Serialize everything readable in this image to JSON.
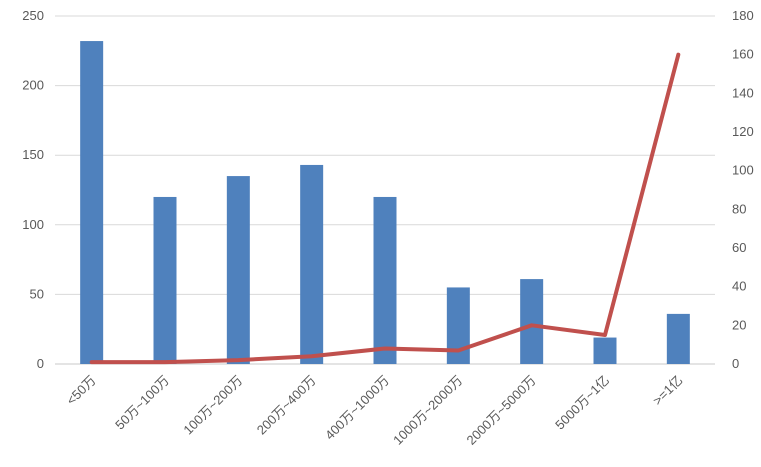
{
  "colors": {
    "bar": "#4f81bd",
    "line": "#c0504d",
    "gridline": "#d9d9d9",
    "axis_line": "#c9c9c9",
    "tick_text": "#595959",
    "background": "#ffffff"
  },
  "chart_data": {
    "type": "bar",
    "subtype": "combo-bar-line-dual-axis",
    "title": "",
    "xlabel": "",
    "ylabel": "",
    "legend": "none",
    "grid": true,
    "x_label_rotation": -45,
    "categories": [
      "<50万",
      "50万~100万",
      "100万~200万",
      "200万~400万",
      "400万~1000万",
      "1000万~2000万",
      "2000万~5000万",
      "5000万~1亿",
      ">=1亿"
    ],
    "series": [
      {
        "id": "bars",
        "type": "bar",
        "axis": "left",
        "color": "#4f81bd",
        "values": [
          232,
          120,
          135,
          143,
          120,
          55,
          61,
          19,
          36
        ]
      },
      {
        "id": "line",
        "type": "line",
        "axis": "right",
        "color": "#c0504d",
        "values": [
          1,
          1,
          2,
          4,
          8,
          7,
          20,
          15,
          160
        ]
      }
    ],
    "left_axis": {
      "min": 0,
      "max": 250,
      "step": 50,
      "ticks": [
        0,
        50,
        100,
        150,
        200,
        250
      ]
    },
    "right_axis": {
      "min": 0,
      "max": 180,
      "step": 20,
      "ticks": [
        0,
        20,
        40,
        60,
        80,
        100,
        120,
        140,
        160,
        180
      ]
    }
  }
}
